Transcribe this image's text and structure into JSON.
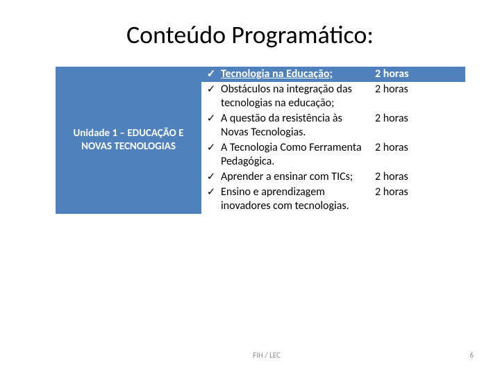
{
  "title": "Conteúdo Programático:",
  "unit_label": "Unidade 1 – EDUCAÇÃO E NOVAS TECNOLOGIAS",
  "items": [
    {
      "check": "✓",
      "topic": "Tecnologia na Educação;",
      "hours": "2 horas",
      "highlight": true
    },
    {
      "check": "✓",
      "topic": "Obstáculos na integração das tecnologias na educação;",
      "hours": "2 horas",
      "highlight": false
    },
    {
      "check": "✓",
      "topic": "A questão da resistência às Novas Tecnologias.",
      "hours": "2 horas",
      "highlight": false
    },
    {
      "check": "✓",
      "topic": "A Tecnologia Como Ferramenta Pedagógica.",
      "hours": "2 horas",
      "highlight": false
    },
    {
      "check": "✓",
      "topic": "Aprender a ensinar com TICs;",
      "hours": "2 horas",
      "highlight": false
    },
    {
      "check": "✓",
      "topic": "Ensino e aprendizagem inovadores com tecnologias.",
      "hours": "2 horas",
      "highlight": false
    }
  ],
  "footer": "FIH / LEC",
  "page_number": "6",
  "colors": {
    "accent": "#4f81bd",
    "text": "#000000",
    "footer_text": "#8c8c8c",
    "background": "#ffffff"
  }
}
